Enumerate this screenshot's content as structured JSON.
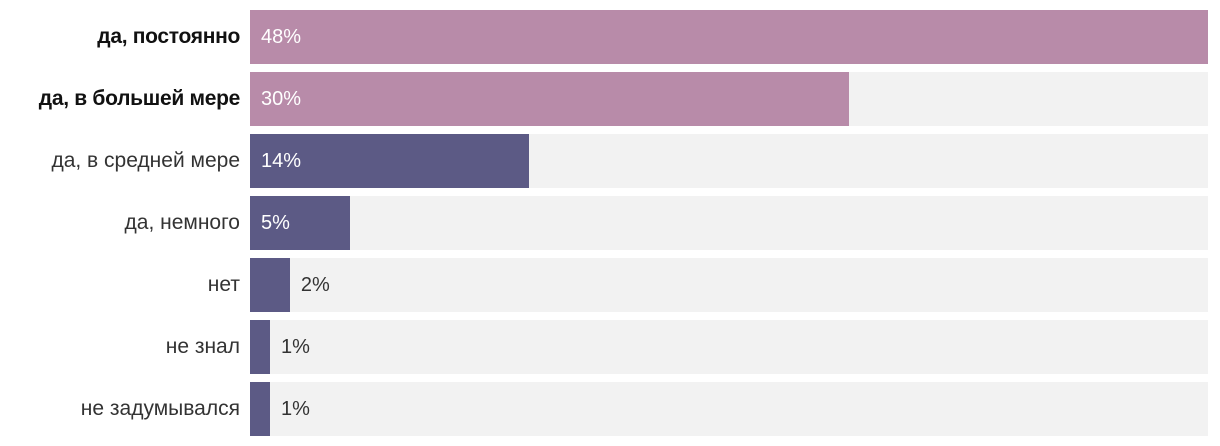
{
  "chart_data": {
    "type": "bar",
    "orientation": "horizontal",
    "categories": [
      "да, постоянно",
      "да, в большей мере",
      "да, в средней мере",
      "да, немного",
      "нет",
      "не знал",
      "не задумывался"
    ],
    "values": [
      48,
      30,
      14,
      5,
      2,
      1,
      1
    ],
    "value_labels": [
      "48%",
      "30%",
      "14%",
      "5%",
      "2%",
      "1%",
      "1%"
    ],
    "emphasized_categories": [
      0,
      1
    ],
    "xlim": [
      0,
      48
    ],
    "grid": false,
    "legend": "none",
    "colors": {
      "emphasized_bar": "#b88ba9",
      "bar": "#5c5a85",
      "track": "#f2f2f2",
      "label_inside": "#ffffff",
      "label_outside": "#333333"
    }
  }
}
